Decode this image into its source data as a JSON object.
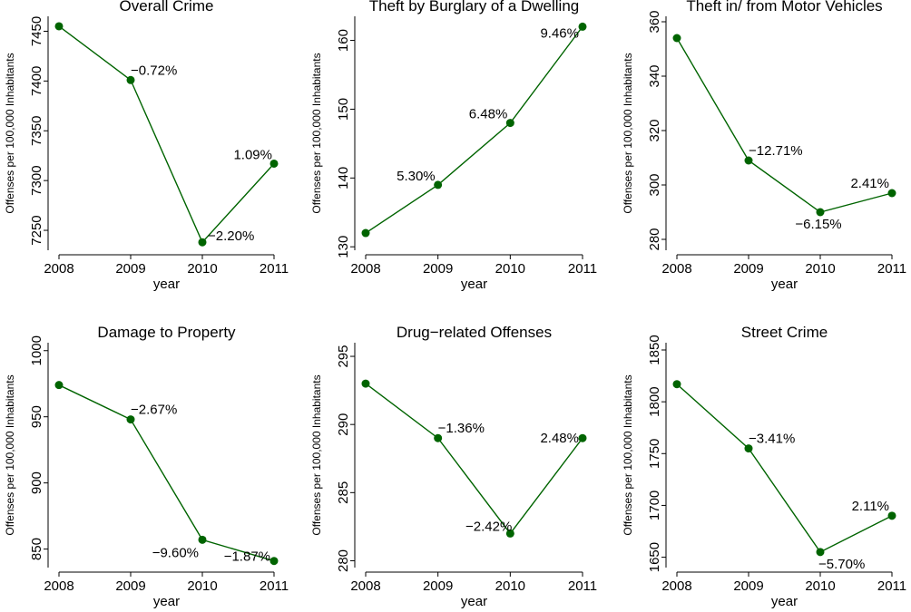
{
  "colors": {
    "series": "#006400",
    "axis": "#000000",
    "background": "#ffffff"
  },
  "chart_data": [
    {
      "type": "line",
      "title": "Overall Crime",
      "xlabel": "year",
      "ylabel": "Offenses per 100,000 Inhabitants",
      "x": [
        2008,
        2009,
        2010,
        2011
      ],
      "values": [
        7455,
        7401,
        7238,
        7317
      ],
      "labels": [
        "",
        "−0.72%",
        "−2.20%",
        "1.09%"
      ],
      "ylim": [
        7230,
        7465
      ],
      "yticks": [
        7250,
        7300,
        7350,
        7400,
        7450
      ],
      "grid": false
    },
    {
      "type": "line",
      "title": "Theft by Burglary of a Dwelling",
      "xlabel": "year",
      "ylabel": "Offenses per 100,000 Inhabitants",
      "x": [
        2008,
        2009,
        2010,
        2011
      ],
      "values": [
        132,
        139,
        148,
        162
      ],
      "labels": [
        "",
        "5.30%",
        "6.48%",
        "9.46%"
      ],
      "ylim": [
        129.5,
        163.5
      ],
      "yticks": [
        130,
        140,
        150,
        160
      ],
      "grid": false
    },
    {
      "type": "line",
      "title": "Theft in/ from Motor Vehicles",
      "xlabel": "year",
      "ylabel": "Offenses per 100,000 Inhabitants",
      "x": [
        2008,
        2009,
        2010,
        2011
      ],
      "values": [
        354,
        309,
        290,
        297
      ],
      "labels": [
        "",
        "−12.71%",
        "−6.15%",
        "2.41%"
      ],
      "ylim": [
        276,
        362
      ],
      "yticks": [
        280,
        300,
        320,
        340,
        360
      ],
      "grid": false
    },
    {
      "type": "line",
      "title": "Damage to Property",
      "xlabel": "year",
      "ylabel": "Offenses per 100,000 Inhabitants",
      "x": [
        2008,
        2009,
        2010,
        2011
      ],
      "values": [
        974,
        948,
        857,
        841
      ],
      "labels": [
        "",
        "−2.67%",
        "−9.60%",
        "−1.87%"
      ],
      "ylim": [
        836,
        1006
      ],
      "yticks": [
        850,
        900,
        950,
        1000
      ],
      "grid": false
    },
    {
      "type": "line",
      "title": "Drug−related Offenses",
      "xlabel": "year",
      "ylabel": "Offenses per 100,000 Inhabitants",
      "x": [
        2008,
        2009,
        2010,
        2011
      ],
      "values": [
        293,
        289,
        282,
        289
      ],
      "labels": [
        "",
        "−1.36%",
        "−2.42%",
        "2.48%"
      ],
      "ylim": [
        279.5,
        296
      ],
      "yticks": [
        280,
        285,
        290,
        295
      ],
      "grid": false
    },
    {
      "type": "line",
      "title": "Street Crime",
      "xlabel": "year",
      "ylabel": "Offenses per 100,000 Inhabitants",
      "x": [
        2008,
        2009,
        2010,
        2011
      ],
      "values": [
        1817,
        1755,
        1655,
        1690
      ],
      "labels": [
        "",
        "−3.41%",
        "−5.70%",
        "2.11%"
      ],
      "ylim": [
        1640,
        1857
      ],
      "yticks": [
        1650,
        1700,
        1750,
        1800,
        1850
      ],
      "grid": false
    }
  ]
}
